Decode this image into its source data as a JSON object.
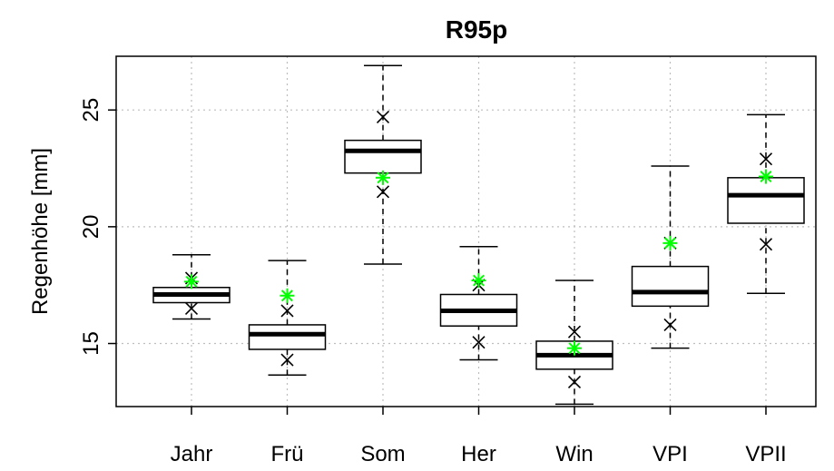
{
  "chart_data": {
    "type": "boxplot",
    "title": "R95p",
    "xlabel": "",
    "ylabel": "Regenhöhe [mm]",
    "ylim": [
      12.3,
      27.3
    ],
    "yticks": [
      15,
      20,
      25
    ],
    "grid": true,
    "categories": [
      "Jahr",
      "Frü",
      "Som",
      "Her",
      "Win",
      "VPI",
      "VPII"
    ],
    "boxes": [
      {
        "whisker_low": 16.05,
        "q1": 16.75,
        "median": 17.1,
        "q3": 17.4,
        "whisker_high": 18.8
      },
      {
        "whisker_low": 13.65,
        "q1": 14.75,
        "median": 15.4,
        "q3": 15.8,
        "whisker_high": 18.55
      },
      {
        "whisker_low": 18.4,
        "q1": 22.3,
        "median": 23.25,
        "q3": 23.7,
        "whisker_high": 26.9
      },
      {
        "whisker_low": 14.3,
        "q1": 15.75,
        "median": 16.4,
        "q3": 17.1,
        "whisker_high": 19.15
      },
      {
        "whisker_low": 12.4,
        "q1": 13.9,
        "median": 14.5,
        "q3": 15.1,
        "whisker_high": 17.7
      },
      {
        "whisker_low": 14.8,
        "q1": 16.6,
        "median": 17.2,
        "q3": 18.3,
        "whisker_high": 22.6
      },
      {
        "whisker_low": 17.15,
        "q1": 20.15,
        "median": 21.35,
        "q3": 22.1,
        "whisker_high": 24.8
      }
    ],
    "x_markers": [
      [
        16.5,
        17.8
      ],
      [
        14.3,
        16.4
      ],
      [
        21.5,
        24.7
      ],
      [
        15.05,
        17.5
      ],
      [
        13.35,
        15.5
      ],
      [
        15.8,
        19.3
      ],
      [
        19.25,
        22.9
      ]
    ],
    "star_markers": [
      17.65,
      17.05,
      22.1,
      17.7,
      14.8,
      19.3,
      22.15
    ],
    "colors": {
      "box": "#000000",
      "x_marker": "#000000",
      "star_marker": "#00ff00",
      "grid": "#bebebe"
    }
  }
}
